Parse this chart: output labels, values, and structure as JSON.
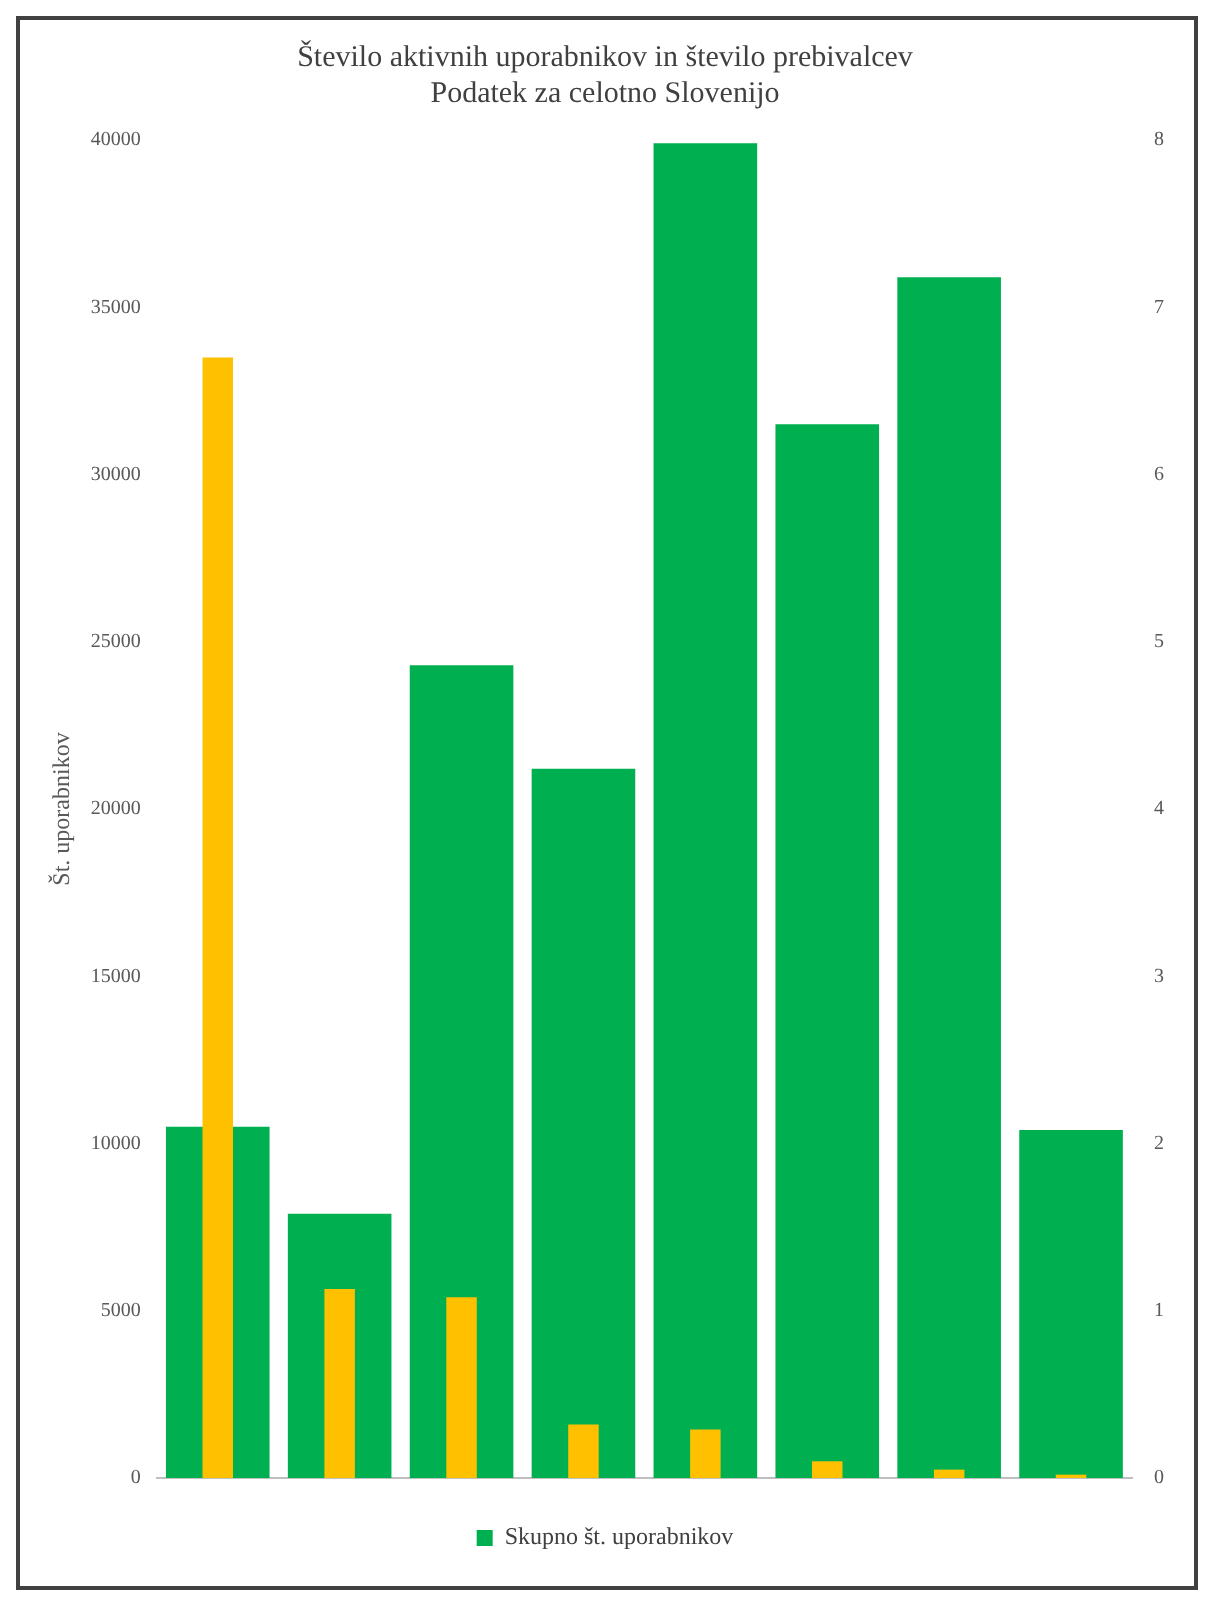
{
  "chart_data": {
    "type": "bar",
    "title": [
      "Število aktivnih uporabnikov in število prebivalcev",
      "Podatek za celotno Slovenijo"
    ],
    "categories": [
      null,
      null,
      null,
      null,
      null,
      null,
      null,
      null
    ],
    "series": [
      {
        "name": "Skupno št. uporabnikov",
        "color": "#00b050",
        "values": [
          10500,
          7900,
          24300,
          21200,
          39900,
          31500,
          35900,
          10400
        ]
      },
      {
        "color": "#ffc000",
        "axis": "y2",
        "values": [
          6.7,
          1.13,
          1.08,
          0.32,
          0.29,
          0.1,
          0.05,
          0.02
        ]
      }
    ],
    "ylim": [
      0,
      40000
    ],
    "yticks": [
      0,
      5000,
      10000,
      15000,
      20000,
      25000,
      30000,
      35000,
      40000
    ],
    "y2lim": [
      0,
      8
    ],
    "y2ticks": [
      0,
      1,
      2,
      3,
      4,
      5,
      6,
      7,
      8
    ],
    "ylabel": "Št. uporabnikov",
    "grid": false,
    "legend": "bottom"
  }
}
